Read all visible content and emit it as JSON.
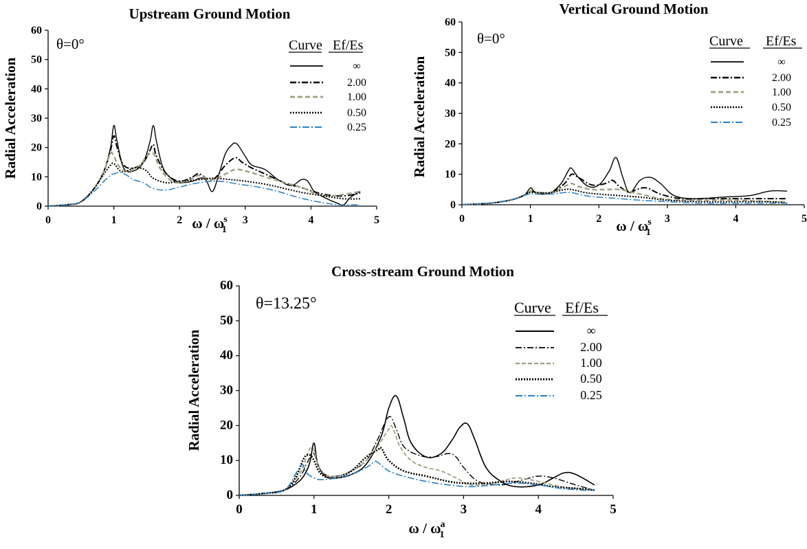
{
  "chart_data": [
    {
      "id": "upstream",
      "type": "line",
      "title": "Upstream Ground Motion",
      "ylabel": "Radial Acceleration",
      "xlabel_main": "ω / ω",
      "xlabel_sup": "s",
      "xlabel_sub": "1",
      "annotation": "θ=0°",
      "legend_header": [
        "Curve",
        "Ef/Es"
      ],
      "legend_labels": [
        "∞",
        "2.00",
        "1.00",
        "0.50",
        "0.25"
      ],
      "xlim": [
        0,
        5
      ],
      "ylim": [
        0,
        60
      ],
      "xticks": [
        "0",
        "1",
        "2",
        "3",
        "4",
        "5"
      ],
      "yticks": [
        "0",
        "10",
        "20",
        "30",
        "40",
        "50",
        "60"
      ],
      "series": [
        {
          "x": [
            0,
            0.3,
            0.5,
            0.7,
            0.85,
            0.95,
            1.0,
            1.05,
            1.15,
            1.3,
            1.45,
            1.55,
            1.6,
            1.65,
            1.75,
            1.9,
            2.0,
            2.2,
            2.3,
            2.4,
            2.5,
            2.6,
            2.7,
            2.8,
            2.85,
            2.9,
            3.0,
            3.1,
            3.3,
            3.5,
            3.7,
            3.85,
            3.95,
            4.05,
            4.2,
            4.4,
            4.5,
            4.6,
            4.75
          ],
          "y": [
            0,
            0.5,
            1.5,
            6,
            12,
            20,
            27.5,
            22,
            13,
            12,
            15,
            22,
            27.5,
            22,
            13,
            9,
            8,
            8.5,
            9.5,
            9,
            5,
            11,
            18,
            21,
            21.5,
            20.5,
            17,
            14,
            12.5,
            9,
            7,
            9,
            8.5,
            5,
            3,
            1,
            0.5,
            3,
            5
          ]
        },
        {
          "x": [
            0,
            0.3,
            0.5,
            0.7,
            0.85,
            0.95,
            1.0,
            1.05,
            1.15,
            1.3,
            1.45,
            1.55,
            1.6,
            1.65,
            1.8,
            2.0,
            2.2,
            2.3,
            2.5,
            2.7,
            2.85,
            2.95,
            3.1,
            3.3,
            3.6,
            3.9,
            4.2,
            4.5,
            4.75
          ],
          "y": [
            0,
            0.5,
            1.5,
            6,
            12,
            19,
            24,
            20,
            14,
            13,
            15,
            19,
            21,
            17,
            11,
            8.5,
            10,
            11,
            9,
            14,
            16.5,
            15,
            13,
            11,
            8,
            6,
            4,
            3.5,
            4.5
          ]
        },
        {
          "x": [
            0,
            0.3,
            0.5,
            0.7,
            0.85,
            0.95,
            1.0,
            1.1,
            1.25,
            1.4,
            1.5,
            1.6,
            1.7,
            1.85,
            2.0,
            2.2,
            2.3,
            2.5,
            2.7,
            2.85,
            3.0,
            3.3,
            3.6,
            3.9,
            4.1,
            4.3,
            4.5,
            4.75
          ],
          "y": [
            0,
            0.5,
            1.5,
            6,
            12,
            18,
            17,
            13,
            12,
            14,
            17,
            18,
            13,
            9,
            8,
            9.5,
            10.5,
            9,
            11,
            12.5,
            12,
            10,
            8,
            6,
            4,
            3.5,
            4,
            5
          ]
        },
        {
          "x": [
            0,
            0.3,
            0.5,
            0.7,
            0.85,
            0.95,
            1.0,
            1.1,
            1.2,
            1.3,
            1.4,
            1.5,
            1.6,
            1.8,
            2.0,
            2.3,
            2.5,
            2.8,
            3.0,
            3.3,
            3.6,
            3.9,
            4.2,
            4.5,
            4.75
          ],
          "y": [
            0,
            0.5,
            1.5,
            6,
            11,
            14,
            14.5,
            12,
            12,
            13,
            13,
            12,
            9.5,
            8,
            8.5,
            9,
            9.5,
            9,
            8.5,
            7.5,
            6,
            4.5,
            3.5,
            2.5,
            2.5
          ]
        },
        {
          "x": [
            0,
            0.3,
            0.5,
            0.7,
            0.85,
            0.95,
            1.0,
            1.1,
            1.2,
            1.3,
            1.45,
            1.6,
            1.8,
            2.0,
            2.3,
            2.6,
            2.9,
            3.2,
            3.5,
            3.8,
            4.1,
            4.4,
            4.75
          ],
          "y": [
            0,
            0.5,
            1.5,
            5,
            8.5,
            10.5,
            11,
            11.5,
            10.5,
            9,
            8,
            6,
            5.5,
            6.5,
            8,
            8.5,
            7.5,
            6.5,
            5,
            3,
            1.5,
            0.5,
            0.5
          ]
        }
      ]
    },
    {
      "id": "vertical",
      "type": "line",
      "title": "Vertical Ground Motion",
      "ylabel": "Radial Acceleration",
      "xlabel_main": "ω / ω",
      "xlabel_sup": "s",
      "xlabel_sub": "1",
      "annotation": "θ=0°",
      "legend_header": [
        "Curve",
        "Ef/Es"
      ],
      "legend_labels": [
        "∞",
        "2.00",
        "1.00",
        "0.50",
        "0.25"
      ],
      "xlim": [
        0,
        5
      ],
      "ylim": [
        0,
        60
      ],
      "xticks": [
        "0",
        "1",
        "2",
        "3",
        "4",
        "5"
      ],
      "yticks": [
        "0",
        "10",
        "20",
        "30",
        "40",
        "50",
        "60"
      ],
      "series": [
        {
          "x": [
            0,
            0.4,
            0.7,
            0.9,
            1.0,
            1.05,
            1.15,
            1.3,
            1.45,
            1.55,
            1.6,
            1.7,
            1.85,
            2.0,
            2.15,
            2.25,
            2.35,
            2.45,
            2.6,
            2.75,
            2.9,
            3.1,
            3.4,
            3.8,
            4.2,
            4.5,
            4.75
          ],
          "y": [
            0,
            0.5,
            1.5,
            3,
            5.5,
            4.5,
            3.5,
            4,
            7,
            11,
            12,
            9,
            6,
            6.5,
            11,
            15.5,
            9,
            4,
            8,
            9,
            7,
            3,
            2,
            2.5,
            3,
            4.5,
            4.5
          ]
        },
        {
          "x": [
            0,
            0.4,
            0.7,
            0.9,
            1.0,
            1.1,
            1.3,
            1.5,
            1.6,
            1.7,
            1.9,
            2.1,
            2.2,
            2.3,
            2.45,
            2.55,
            2.7,
            2.9,
            3.2,
            3.6,
            4.0,
            4.5,
            4.75
          ],
          "y": [
            0,
            0.5,
            1.5,
            3,
            4.5,
            4,
            4,
            7,
            10,
            9,
            6.5,
            7,
            8,
            6,
            4,
            5,
            5.5,
            3.5,
            2,
            2,
            2,
            2,
            2
          ]
        },
        {
          "x": [
            0,
            0.4,
            0.7,
            0.9,
            1.0,
            1.1,
            1.3,
            1.5,
            1.6,
            1.7,
            1.9,
            2.1,
            2.3,
            2.5,
            2.7,
            2.9,
            3.2,
            3.6,
            4.0,
            4.5,
            4.75
          ],
          "y": [
            0,
            0.5,
            1.5,
            3,
            4.5,
            4,
            4,
            6,
            7,
            6,
            5,
            5,
            5,
            4,
            3,
            2,
            1.5,
            1.5,
            1.5,
            1,
            1
          ]
        },
        {
          "x": [
            0,
            0.4,
            0.7,
            0.9,
            1.0,
            1.1,
            1.3,
            1.5,
            1.6,
            1.8,
            2.0,
            2.3,
            2.6,
            3.0,
            3.5,
            4.0,
            4.5,
            4.75
          ],
          "y": [
            0,
            0.5,
            1.5,
            3,
            4,
            4,
            4,
            5,
            5,
            4,
            3.5,
            3,
            2.5,
            1.5,
            1,
            1,
            1,
            0.5
          ]
        },
        {
          "x": [
            0,
            0.4,
            0.7,
            0.9,
            1.0,
            1.1,
            1.3,
            1.5,
            1.6,
            1.8,
            2.0,
            2.3,
            2.6,
            3.0,
            3.5,
            4.0,
            4.5,
            4.75
          ],
          "y": [
            0,
            0.5,
            1.5,
            3,
            3.5,
            3.5,
            3.5,
            4,
            4,
            3,
            2.5,
            2,
            1.5,
            1,
            0.5,
            0.5,
            0.5,
            0.5
          ]
        }
      ]
    },
    {
      "id": "cross",
      "type": "line",
      "title": "Cross-stream Ground Motion",
      "ylabel": "Radial Acceleration",
      "xlabel_main": "ω / ω",
      "xlabel_sup": "a",
      "xlabel_sub": "1",
      "annotation": "θ=13.25°",
      "legend_header": [
        "Curve",
        "Ef/Es"
      ],
      "legend_labels": [
        "∞",
        "2.00",
        "1.00",
        "0.50",
        "0.25"
      ],
      "xlim": [
        0,
        5
      ],
      "ylim": [
        0,
        60
      ],
      "xticks": [
        "0",
        "1",
        "2",
        "3",
        "4",
        "5"
      ],
      "yticks": [
        "0",
        "10",
        "20",
        "30",
        "40",
        "50",
        "60"
      ],
      "series": [
        {
          "x": [
            0,
            0.3,
            0.6,
            0.8,
            0.9,
            0.95,
            1.0,
            1.05,
            1.15,
            1.3,
            1.5,
            1.7,
            1.9,
            2.0,
            2.1,
            2.2,
            2.3,
            2.5,
            2.7,
            2.85,
            2.95,
            3.05,
            3.15,
            3.3,
            3.5,
            3.7,
            4.0,
            4.2,
            4.35,
            4.5,
            4.75
          ],
          "y": [
            0,
            0.5,
            1.5,
            4,
            7,
            10,
            15,
            9,
            5.5,
            5,
            6,
            9,
            17,
            25,
            28.5,
            22,
            15,
            11,
            12,
            16,
            19.5,
            20.5,
            16,
            8,
            4,
            2.5,
            3,
            5,
            6.5,
            6,
            3
          ]
        },
        {
          "x": [
            0,
            0.3,
            0.6,
            0.8,
            0.9,
            0.95,
            1.0,
            1.05,
            1.15,
            1.3,
            1.5,
            1.7,
            1.85,
            2.0,
            2.1,
            2.2,
            2.4,
            2.6,
            2.8,
            2.9,
            3.0,
            3.2,
            3.5,
            3.8,
            4.0,
            4.2,
            4.5,
            4.75
          ],
          "y": [
            0,
            0.5,
            1.5,
            5,
            9,
            11,
            12,
            9,
            6,
            5.5,
            7,
            10,
            16,
            22.5,
            19,
            14,
            11.5,
            11,
            12,
            11,
            8,
            4,
            3,
            4.5,
            5.5,
            5,
            3,
            1.5
          ]
        },
        {
          "x": [
            0,
            0.3,
            0.6,
            0.8,
            0.9,
            0.95,
            1.0,
            1.05,
            1.15,
            1.3,
            1.5,
            1.7,
            1.85,
            2.0,
            2.05,
            2.15,
            2.3,
            2.5,
            2.7,
            2.9,
            3.1,
            3.4,
            3.7,
            4.0,
            4.3,
            4.5,
            4.75
          ],
          "y": [
            0,
            0.5,
            1.5,
            6,
            11,
            13.5,
            13,
            9,
            6,
            5.5,
            7,
            10,
            14,
            19,
            19.5,
            14,
            10,
            8,
            7,
            5,
            3,
            3.5,
            5,
            4,
            2.5,
            2,
            1.5
          ]
        },
        {
          "x": [
            0,
            0.3,
            0.6,
            0.75,
            0.85,
            0.9,
            0.95,
            1.0,
            1.1,
            1.3,
            1.5,
            1.7,
            1.85,
            1.9,
            2.0,
            2.2,
            2.5,
            2.8,
            3.0,
            3.3,
            3.6,
            3.9,
            4.2,
            4.5,
            4.75
          ],
          "y": [
            0,
            0.5,
            1.5,
            5,
            10,
            11.5,
            11.5,
            10,
            6,
            5,
            7,
            11,
            13,
            13.5,
            10,
            7,
            5.5,
            4,
            3.5,
            3.5,
            4,
            3.5,
            2.5,
            2,
            1.5
          ]
        },
        {
          "x": [
            0,
            0.3,
            0.6,
            0.75,
            0.82,
            0.86,
            0.9,
            1.0,
            1.1,
            1.3,
            1.5,
            1.7,
            1.8,
            1.85,
            2.0,
            2.2,
            2.5,
            2.8,
            3.1,
            3.4,
            3.7,
            4.0,
            4.3,
            4.6,
            4.75
          ],
          "y": [
            0,
            0.5,
            1.5,
            6,
            8.5,
            8.5,
            6.5,
            5,
            4.5,
            5,
            6,
            8,
            9.5,
            9.5,
            7,
            5.5,
            4,
            3,
            2.5,
            3,
            3.5,
            3,
            2,
            1.5,
            1.5
          ]
        }
      ]
    }
  ]
}
